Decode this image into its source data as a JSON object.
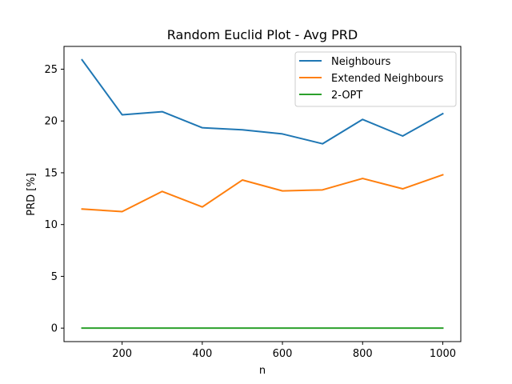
{
  "chart_data": {
    "type": "line",
    "title": "Random Euclid Plot - Avg PRD",
    "xlabel": "n",
    "ylabel": "PRD [%]",
    "x": [
      100,
      200,
      300,
      400,
      500,
      600,
      700,
      800,
      900,
      1000
    ],
    "xticks": [
      "200",
      "400",
      "600",
      "800",
      "1000"
    ],
    "yticks": [
      "0",
      "5",
      "10",
      "15",
      "20",
      "25"
    ],
    "xlim": [
      55,
      1045
    ],
    "ylim": [
      -1.3,
      27.2
    ],
    "legend_position": "top-right",
    "series": [
      {
        "name": "Neighbours",
        "color": "#1f77b4",
        "values": [
          25.9,
          20.6,
          20.9,
          19.35,
          19.15,
          18.75,
          17.8,
          20.15,
          18.55,
          20.7
        ]
      },
      {
        "name": "Extended Neighbours",
        "color": "#ff7f0e",
        "values": [
          11.5,
          11.25,
          13.2,
          11.7,
          14.3,
          13.25,
          13.35,
          14.45,
          13.45,
          14.8
        ]
      },
      {
        "name": "2-OPT",
        "color": "#2ca02c",
        "values": [
          0,
          0,
          0,
          0,
          0,
          0,
          0,
          0,
          0,
          0
        ]
      }
    ]
  }
}
